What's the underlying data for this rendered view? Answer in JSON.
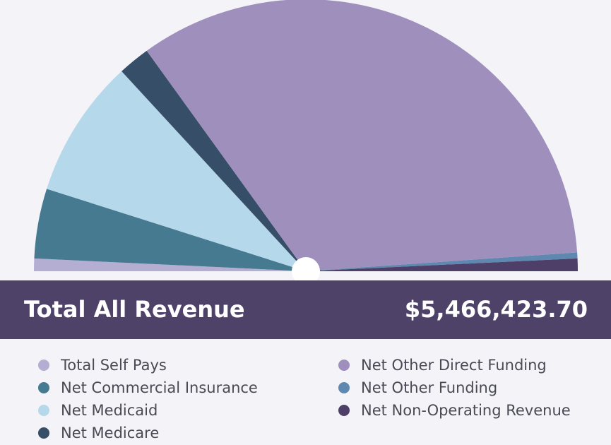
{
  "chart_data": {
    "type": "semi-pie",
    "title": "Total All Revenue",
    "total": "$5,466,423.70",
    "categories": [
      "Total Self Pays",
      "Net Commercial Insurance",
      "Net Medicaid",
      "Net Medicare",
      "Net Other Direct Funding",
      "Net Other Funding",
      "Net Non-Operating Revenue"
    ],
    "values": [
      1.5,
      8.3,
      16.5,
      3.8,
      67.7,
      0.7,
      1.5
    ],
    "colors": [
      "#b5aed3",
      "#457a91",
      "#b5d9ea",
      "#374e68",
      "#9f8fbd",
      "#5f88b0",
      "#4e3f68"
    ]
  }
}
